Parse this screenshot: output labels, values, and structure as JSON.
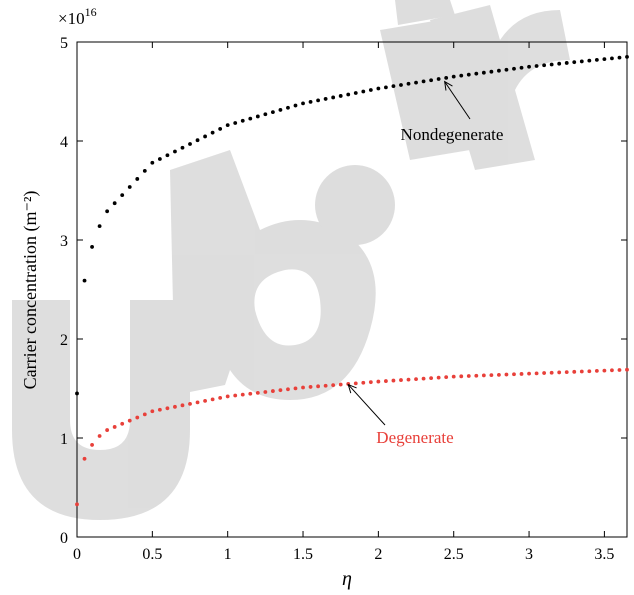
{
  "chart_data": {
    "type": "scatter",
    "xlabel": "η",
    "ylabel": "Carrier concentration (m⁻²)",
    "y_multiplier": "×10",
    "y_multiplier_exponent": "16",
    "xlim": [
      0,
      3.65
    ],
    "ylim": [
      0,
      5
    ],
    "x_ticks": [
      0,
      0.5,
      1,
      1.5,
      2,
      2.5,
      3,
      3.5
    ],
    "x_tick_labels": [
      "0",
      "0.5",
      "1",
      "1.5",
      "2",
      "2.5",
      "3",
      "3.5"
    ],
    "y_ticks": [
      0,
      1,
      2,
      3,
      4,
      5
    ],
    "y_tick_labels": [
      "0",
      "1",
      "2",
      "3",
      "4",
      "5"
    ],
    "grid": false,
    "series": [
      {
        "name": "Nondegenerate",
        "color": "#000000",
        "x_start": 0,
        "x_step": 0.05,
        "x_end": 3.65,
        "points": [
          [
            0,
            1.45
          ],
          [
            0.05,
            2.59
          ],
          [
            0.1,
            2.93
          ],
          [
            0.15,
            3.14
          ],
          [
            0.2,
            3.29
          ],
          [
            0.5,
            3.78
          ],
          [
            1.0,
            4.16
          ],
          [
            1.5,
            4.38
          ],
          [
            2.0,
            4.53
          ],
          [
            2.5,
            4.65
          ],
          [
            3.0,
            4.75
          ],
          [
            3.65,
            4.85
          ]
        ]
      },
      {
        "name": "Degenerate",
        "color": "#e8403a",
        "x_start": 0,
        "x_step": 0.05,
        "x_end": 3.65,
        "points": [
          [
            0,
            0.33
          ],
          [
            0.05,
            0.79
          ],
          [
            0.1,
            0.93
          ],
          [
            0.15,
            1.02
          ],
          [
            0.2,
            1.08
          ],
          [
            0.5,
            1.27
          ],
          [
            1.0,
            1.42
          ],
          [
            1.5,
            1.51
          ],
          [
            2.0,
            1.57
          ],
          [
            2.5,
            1.62
          ],
          [
            3.0,
            1.65
          ],
          [
            3.65,
            1.69
          ]
        ]
      }
    ],
    "annotations": [
      {
        "text": "Nondegenerate",
        "color": "#000000",
        "arrow_to": [
          2.44,
          4.6
        ]
      },
      {
        "text": "Degenerate",
        "color": "#e8403a",
        "arrow_to": [
          1.8,
          1.54
        ]
      }
    ]
  },
  "watermark": {
    "text": "ub.ir",
    "color": "#dcdcdc"
  }
}
